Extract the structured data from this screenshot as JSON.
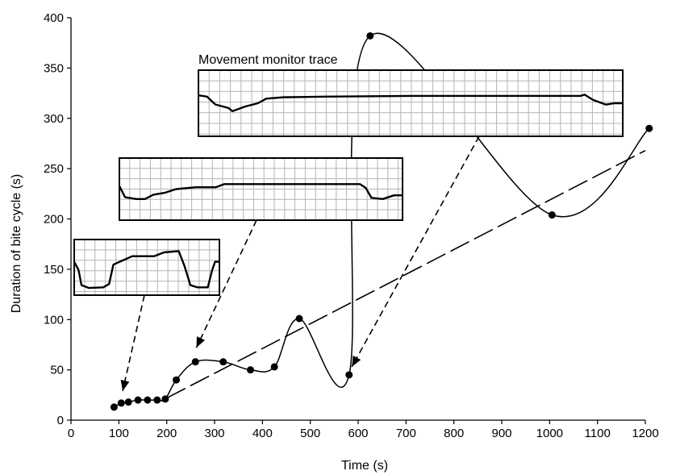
{
  "chart_data": {
    "type": "scatter",
    "title": "",
    "xlabel": "Time (s)",
    "ylabel": "Duration of bite cycle (s)",
    "xlim": [
      0,
      1200
    ],
    "ylim": [
      0,
      400
    ],
    "xticks": [
      "0",
      "100",
      "200",
      "300",
      "400",
      "500",
      "600",
      "700",
      "800",
      "900",
      "1000",
      "1100",
      "1200"
    ],
    "yticks": [
      "0",
      "50",
      "100",
      "150",
      "200",
      "250",
      "300",
      "350",
      "400"
    ],
    "grid": false,
    "series": [
      {
        "style": "points joined by smooth curve",
        "x": [
          90,
          105,
          120,
          140,
          160,
          180,
          197,
          220,
          260,
          318,
          375,
          425,
          477,
          581,
          625,
          1005,
          1208
        ],
        "y": [
          13,
          17,
          18,
          20,
          20,
          20,
          21,
          40,
          58,
          58,
          50,
          53,
          101,
          45,
          382,
          204,
          290
        ]
      },
      {
        "style": "long-dash trend line",
        "x": [
          200,
          1200
        ],
        "y": [
          22,
          268
        ]
      }
    ],
    "annotations": [
      {
        "text": "Movement monitor trace",
        "type": "inset-trace",
        "points_to": {
          "x": 580,
          "y": 45
        }
      },
      {
        "text": "",
        "type": "inset-trace",
        "points_to": {
          "x": 262,
          "y": 72
        }
      },
      {
        "text": "",
        "type": "inset-trace",
        "points_to": {
          "x": 108,
          "y": 25
        }
      }
    ]
  },
  "colors": {
    "line": "#000000",
    "inset_fill": "#ffffff",
    "inset_grid": "#b4b4b4",
    "background": "#ffffff"
  }
}
